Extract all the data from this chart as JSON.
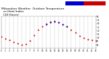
{
  "title": "Milwaukee Weather  Outdoor Temperature\n  vs Heat Index\n  (24 Hours)",
  "title_fontsize": 3.2,
  "background_color": "#ffffff",
  "grid_color": "#aaaaaa",
  "hours": [
    0,
    1,
    2,
    3,
    4,
    5,
    6,
    7,
    8,
    9,
    10,
    11,
    12,
    13,
    14,
    15,
    16,
    17,
    18,
    19,
    20,
    21,
    22,
    23
  ],
  "temp": [
    62,
    59,
    57,
    54,
    52,
    50,
    51,
    56,
    64,
    71,
    76,
    80,
    83,
    84,
    82,
    79,
    76,
    71,
    67,
    63,
    60,
    58,
    57,
    56
  ],
  "heat_index": [
    null,
    null,
    null,
    null,
    null,
    null,
    null,
    null,
    null,
    null,
    null,
    79,
    82,
    83,
    82,
    79,
    76,
    null,
    null,
    null,
    null,
    null,
    null,
    null
  ],
  "temp_color": "#cc0000",
  "heat_color": "#0000cc",
  "ylim": [
    45,
    90
  ],
  "xlim": [
    0,
    23
  ],
  "xtick_positions": [
    0,
    1,
    2,
    3,
    4,
    5,
    6,
    7,
    8,
    9,
    10,
    11,
    12,
    13,
    14,
    15,
    16,
    17,
    18,
    19,
    20,
    21,
    22,
    23
  ],
  "xtick_labels": [
    "0",
    "1",
    "2",
    "3",
    "4",
    "5",
    "6",
    "7",
    "8",
    "9",
    "10",
    "11",
    "12",
    "13",
    "14",
    "15",
    "16",
    "17",
    "18",
    "19",
    "20",
    "21",
    "22",
    "23"
  ],
  "ytick_values": [
    50,
    55,
    60,
    65,
    70,
    75,
    80,
    85,
    90
  ],
  "marker_size": 1.5,
  "dpi": 100,
  "fig_w": 1.6,
  "fig_h": 0.87,
  "legend_blue": [
    0.6,
    0.91,
    0.17,
    0.07
  ],
  "legend_red": [
    0.77,
    0.91,
    0.2,
    0.07
  ]
}
